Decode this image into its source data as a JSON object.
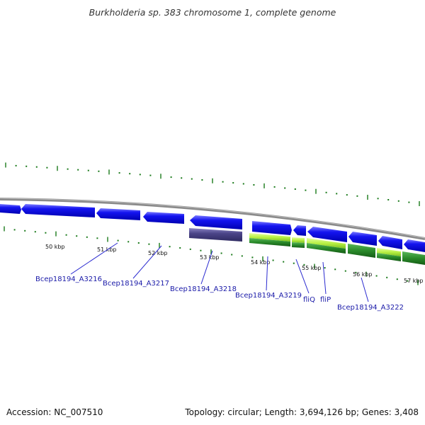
{
  "title": "Burkholderia sp. 383 chromosome 1, complete genome",
  "footer": {
    "accession": "Accession: NC_007510",
    "summary": "Topology: circular; Length: 3,694,126 bp; Genes: 3,408"
  },
  "colors": {
    "backbone": "#8a8a8a",
    "gene_forward": "#1010e8",
    "gene_reverse": "#1010e8",
    "gene_muted": "#4b4488",
    "feature_light": "#b8f044",
    "feature_dark": "#2a8a2a",
    "tick_green": "#1a7a1a",
    "label_blue": "#1a1aa8"
  },
  "scale": {
    "kbp_labels": [
      "50 kbp",
      "51 kbp",
      "52 kbp",
      "53 kbp",
      "54 kbp",
      "55 kbp",
      "56 kbp",
      "57 kbp"
    ]
  },
  "genes": [
    {
      "label": "Bcep18194_A3216"
    },
    {
      "label": "Bcep18194_A3217"
    },
    {
      "label": "Bcep18194_A3218"
    },
    {
      "label": "Bcep18194_A3219"
    },
    {
      "label": "fliQ"
    },
    {
      "label": "fliP"
    },
    {
      "label": "Bcep18194_A3222"
    }
  ]
}
